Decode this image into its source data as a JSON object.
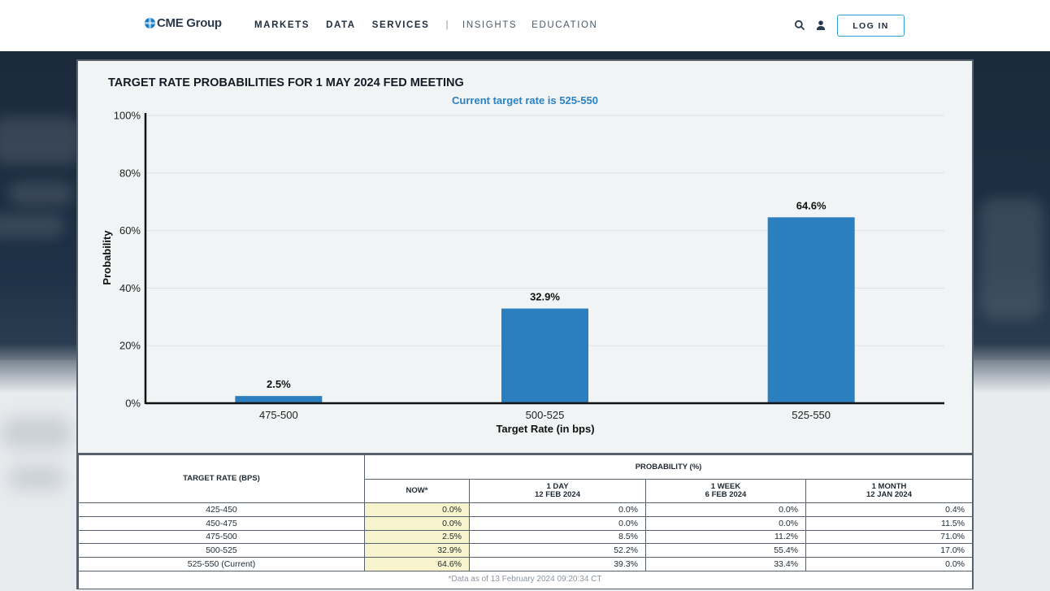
{
  "header": {
    "logo_text": "CME Group",
    "nav": [
      "MARKETS",
      "DATA",
      "SERVICES",
      "|",
      "INSIGHTS",
      "EDUCATION"
    ],
    "login_label": "LOG IN",
    "icons": [
      "search-icon",
      "user-icon"
    ]
  },
  "chart_data": {
    "type": "bar",
    "title": "TARGET RATE PROBABILITIES FOR 1 MAY 2024 FED MEETING",
    "subtitle": "Current target rate is 525-550",
    "categories": [
      "475-500",
      "500-525",
      "525-550"
    ],
    "values": [
      2.5,
      32.9,
      64.6
    ],
    "data_labels": [
      "2.5%",
      "32.9%",
      "64.6%"
    ],
    "xlabel": "Target Rate (in bps)",
    "ylabel": "Probability",
    "ylim": [
      0,
      100
    ],
    "yticks": [
      "0%",
      "20%",
      "40%",
      "60%",
      "80%",
      "100%"
    ],
    "bar_color": "#2b7fbf",
    "grid": true,
    "legend": "none"
  },
  "table": {
    "header_rate": "TARGET RATE (BPS)",
    "header_prob": "PROBABILITY (%)",
    "columns": [
      {
        "line1": "NOW*",
        "line2": ""
      },
      {
        "line1": "1 DAY",
        "line2": "12 FEB 2024"
      },
      {
        "line1": "1 WEEK",
        "line2": "6 FEB 2024"
      },
      {
        "line1": "1 MONTH",
        "line2": "12 JAN 2024"
      }
    ],
    "rows": [
      {
        "rate": "425-450",
        "vals": [
          "0.0%",
          "0.0%",
          "0.0%",
          "0.4%"
        ]
      },
      {
        "rate": "450-475",
        "vals": [
          "0.0%",
          "0.0%",
          "0.0%",
          "11.5%"
        ]
      },
      {
        "rate": "475-500",
        "vals": [
          "2.5%",
          "8.5%",
          "11.2%",
          "71.0%"
        ]
      },
      {
        "rate": "500-525",
        "vals": [
          "32.9%",
          "52.2%",
          "55.4%",
          "17.0%"
        ]
      },
      {
        "rate": "525-550 (Current)",
        "vals": [
          "64.6%",
          "39.3%",
          "33.4%",
          "0.0%"
        ]
      }
    ],
    "footnote": "*Data as of 13 February 2024 09:20:34 CT",
    "now_highlight_color": "#f7f3cc"
  }
}
